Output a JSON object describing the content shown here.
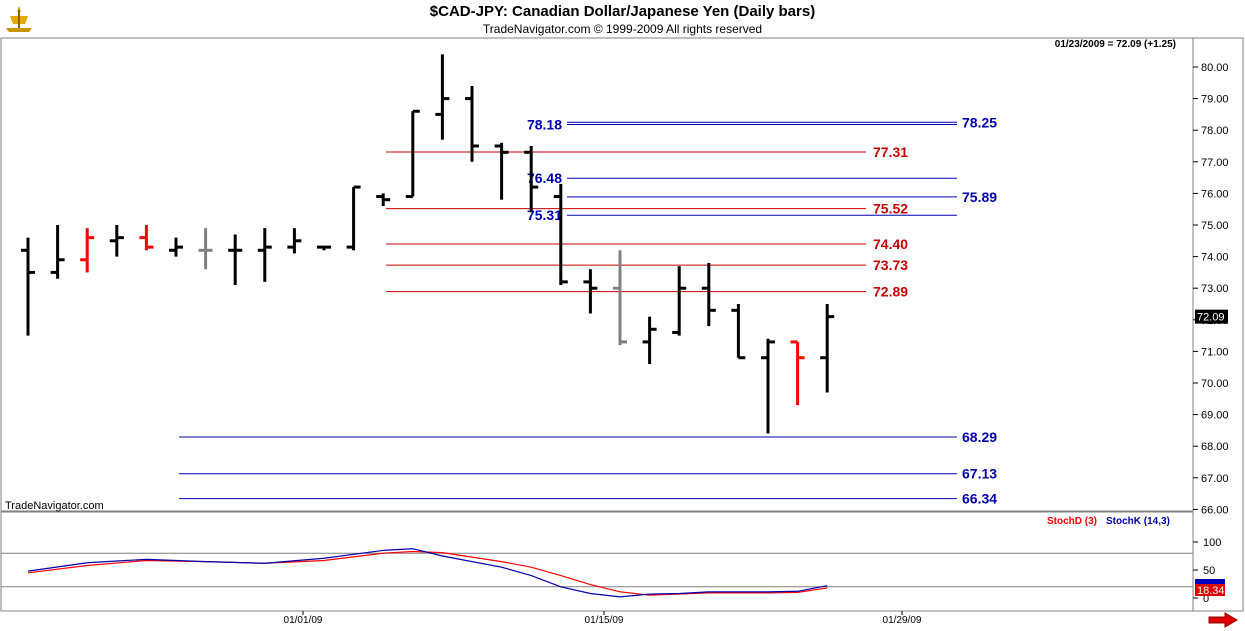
{
  "header": {
    "title": "$CAD-JPY:  Canadian Dollar/Japanese Yen  (Daily bars)",
    "copyright": "TradeNavigator.com © 1999-2009 All rights reserved"
  },
  "watermark": "TradeNavigator.com",
  "last_quote": "01/23/2009 = 72.09 (+1.25)",
  "price_badge": "72.09",
  "stoch_badge": "18.34",
  "colors": {
    "up_bar": "#000000",
    "down_bar": "#ff0000",
    "neutral_bar": "#808080",
    "blue_level": "#0000b0",
    "red_level": "#cc0000",
    "stochD": "#ff0000",
    "stochK": "#0000b0"
  },
  "chart_data": [
    {
      "type": "ohlc",
      "title": "$CAD-JPY:  Canadian Dollar/Japanese Yen  (Daily bars)",
      "ylim": [
        65.6,
        81.2
      ],
      "y_ticks": [
        "80.00",
        "79.00",
        "78.00",
        "77.00",
        "76.00",
        "75.00",
        "74.00",
        "73.00",
        "72.00",
        "71.00",
        "70.00",
        "69.00",
        "68.00",
        "67.00",
        "66.00"
      ],
      "x_ticks": [
        "01/01/09",
        "01/15/09",
        "01/29/09"
      ],
      "bars": [
        {
          "o": 74.2,
          "h": 74.6,
          "l": 71.5,
          "c": 73.5,
          "color": "black"
        },
        {
          "o": 73.5,
          "h": 75.0,
          "l": 73.3,
          "c": 73.9,
          "color": "black"
        },
        {
          "o": 73.9,
          "h": 74.9,
          "l": 73.5,
          "c": 74.6,
          "color": "red"
        },
        {
          "o": 74.5,
          "h": 75.0,
          "l": 74.0,
          "c": 74.6,
          "color": "black"
        },
        {
          "o": 74.6,
          "h": 75.0,
          "l": 74.2,
          "c": 74.3,
          "color": "red"
        },
        {
          "o": 74.2,
          "h": 74.6,
          "l": 74.0,
          "c": 74.3,
          "color": "black"
        },
        {
          "o": 74.2,
          "h": 74.9,
          "l": 73.6,
          "c": 74.2,
          "color": "gray"
        },
        {
          "o": 74.2,
          "h": 74.7,
          "l": 73.1,
          "c": 74.2,
          "color": "black"
        },
        {
          "o": 74.2,
          "h": 74.9,
          "l": 73.2,
          "c": 74.3,
          "color": "black"
        },
        {
          "o": 74.3,
          "h": 74.9,
          "l": 74.1,
          "c": 74.5,
          "color": "black"
        },
        {
          "o": 74.3,
          "h": 74.3,
          "l": 74.2,
          "c": 74.3,
          "color": "black"
        },
        {
          "o": 74.3,
          "h": 76.2,
          "l": 74.2,
          "c": 76.2,
          "color": "black"
        },
        {
          "o": 75.9,
          "h": 76.0,
          "l": 75.6,
          "c": 75.8,
          "color": "black"
        },
        {
          "o": 75.9,
          "h": 78.6,
          "l": 75.9,
          "c": 78.6,
          "color": "black"
        },
        {
          "o": 78.5,
          "h": 80.4,
          "l": 77.7,
          "c": 79.0,
          "color": "black"
        },
        {
          "o": 79.0,
          "h": 79.4,
          "l": 77.0,
          "c": 77.5,
          "color": "black"
        },
        {
          "o": 77.5,
          "h": 77.6,
          "l": 75.8,
          "c": 77.3,
          "color": "black"
        },
        {
          "o": 77.3,
          "h": 77.5,
          "l": 75.4,
          "c": 76.2,
          "color": "black"
        },
        {
          "o": 75.9,
          "h": 76.3,
          "l": 73.1,
          "c": 73.2,
          "color": "black"
        },
        {
          "o": 73.2,
          "h": 73.6,
          "l": 72.2,
          "c": 73.0,
          "color": "black"
        },
        {
          "o": 73.0,
          "h": 74.2,
          "l": 71.2,
          "c": 71.3,
          "color": "gray"
        },
        {
          "o": 71.3,
          "h": 72.1,
          "l": 70.6,
          "c": 71.7,
          "color": "black"
        },
        {
          "o": 71.6,
          "h": 73.7,
          "l": 71.5,
          "c": 73.0,
          "color": "black"
        },
        {
          "o": 73.0,
          "h": 73.8,
          "l": 71.8,
          "c": 72.3,
          "color": "black"
        },
        {
          "o": 72.3,
          "h": 72.5,
          "l": 70.8,
          "c": 70.8,
          "color": "black"
        },
        {
          "o": 70.8,
          "h": 71.4,
          "l": 68.4,
          "c": 71.3,
          "color": "black"
        },
        {
          "o": 71.3,
          "h": 71.3,
          "l": 69.3,
          "c": 70.8,
          "color": "red"
        },
        {
          "o": 70.8,
          "h": 72.5,
          "l": 69.7,
          "c": 72.1,
          "color": "black"
        }
      ],
      "levels": [
        {
          "value": "78.25",
          "label": "78.25",
          "color": "blue",
          "side": "right"
        },
        {
          "value": "78.18",
          "label": "78.18",
          "color": "blue",
          "side": "left"
        },
        {
          "value": "77.31",
          "label": "77.31",
          "color": "red",
          "side": "right"
        },
        {
          "value": "76.48",
          "label": "76.48",
          "color": "blue",
          "side": "left"
        },
        {
          "value": "75.89",
          "label": "75.89",
          "color": "blue",
          "side": "right"
        },
        {
          "value": "75.52",
          "label": "75.52",
          "color": "red",
          "side": "right"
        },
        {
          "value": "75.31",
          "label": "75.31",
          "color": "blue",
          "side": "left"
        },
        {
          "value": "74.40",
          "label": "74.40",
          "color": "red",
          "side": "right"
        },
        {
          "value": "73.73",
          "label": "73.73",
          "color": "red",
          "side": "right"
        },
        {
          "value": "72.89",
          "label": "72.89",
          "color": "red",
          "side": "right"
        },
        {
          "value": "68.29",
          "label": "68.29",
          "color": "blue",
          "side": "right"
        },
        {
          "value": "67.13",
          "label": "67.13",
          "color": "blue",
          "side": "right"
        },
        {
          "value": "66.34",
          "label": "66.34",
          "color": "blue",
          "side": "right"
        }
      ]
    },
    {
      "type": "line",
      "title": "",
      "ylim": [
        0,
        100
      ],
      "y_ticks": [
        "100",
        "50",
        "0"
      ],
      "series": [
        {
          "name": "StochD (3)",
          "color": "red",
          "values": [
            [
              0,
              45
            ],
            [
              2,
              58
            ],
            [
              4,
              67
            ],
            [
              6,
              65
            ],
            [
              8,
              62
            ],
            [
              10,
              67
            ],
            [
              12,
              80
            ],
            [
              13,
              83
            ],
            [
              14,
              81
            ],
            [
              16,
              65
            ],
            [
              17,
              55
            ],
            [
              18,
              40
            ],
            [
              19,
              24
            ],
            [
              20,
              11
            ],
            [
              21,
              5
            ],
            [
              23,
              9
            ],
            [
              25,
              9
            ],
            [
              26,
              10
            ],
            [
              27,
              18
            ]
          ]
        },
        {
          "name": "StochK (14,3)",
          "color": "blue",
          "values": [
            [
              0,
              48
            ],
            [
              2,
              63
            ],
            [
              4,
              69
            ],
            [
              6,
              65
            ],
            [
              8,
              62
            ],
            [
              10,
              71
            ],
            [
              12,
              85
            ],
            [
              13,
              88
            ],
            [
              14,
              75
            ],
            [
              16,
              55
            ],
            [
              17,
              40
            ],
            [
              18,
              20
            ],
            [
              19,
              8
            ],
            [
              20,
              2
            ],
            [
              21,
              7
            ],
            [
              22,
              8
            ],
            [
              23,
              11
            ],
            [
              25,
              11
            ],
            [
              26,
              12
            ],
            [
              27,
              22
            ]
          ]
        }
      ]
    }
  ]
}
